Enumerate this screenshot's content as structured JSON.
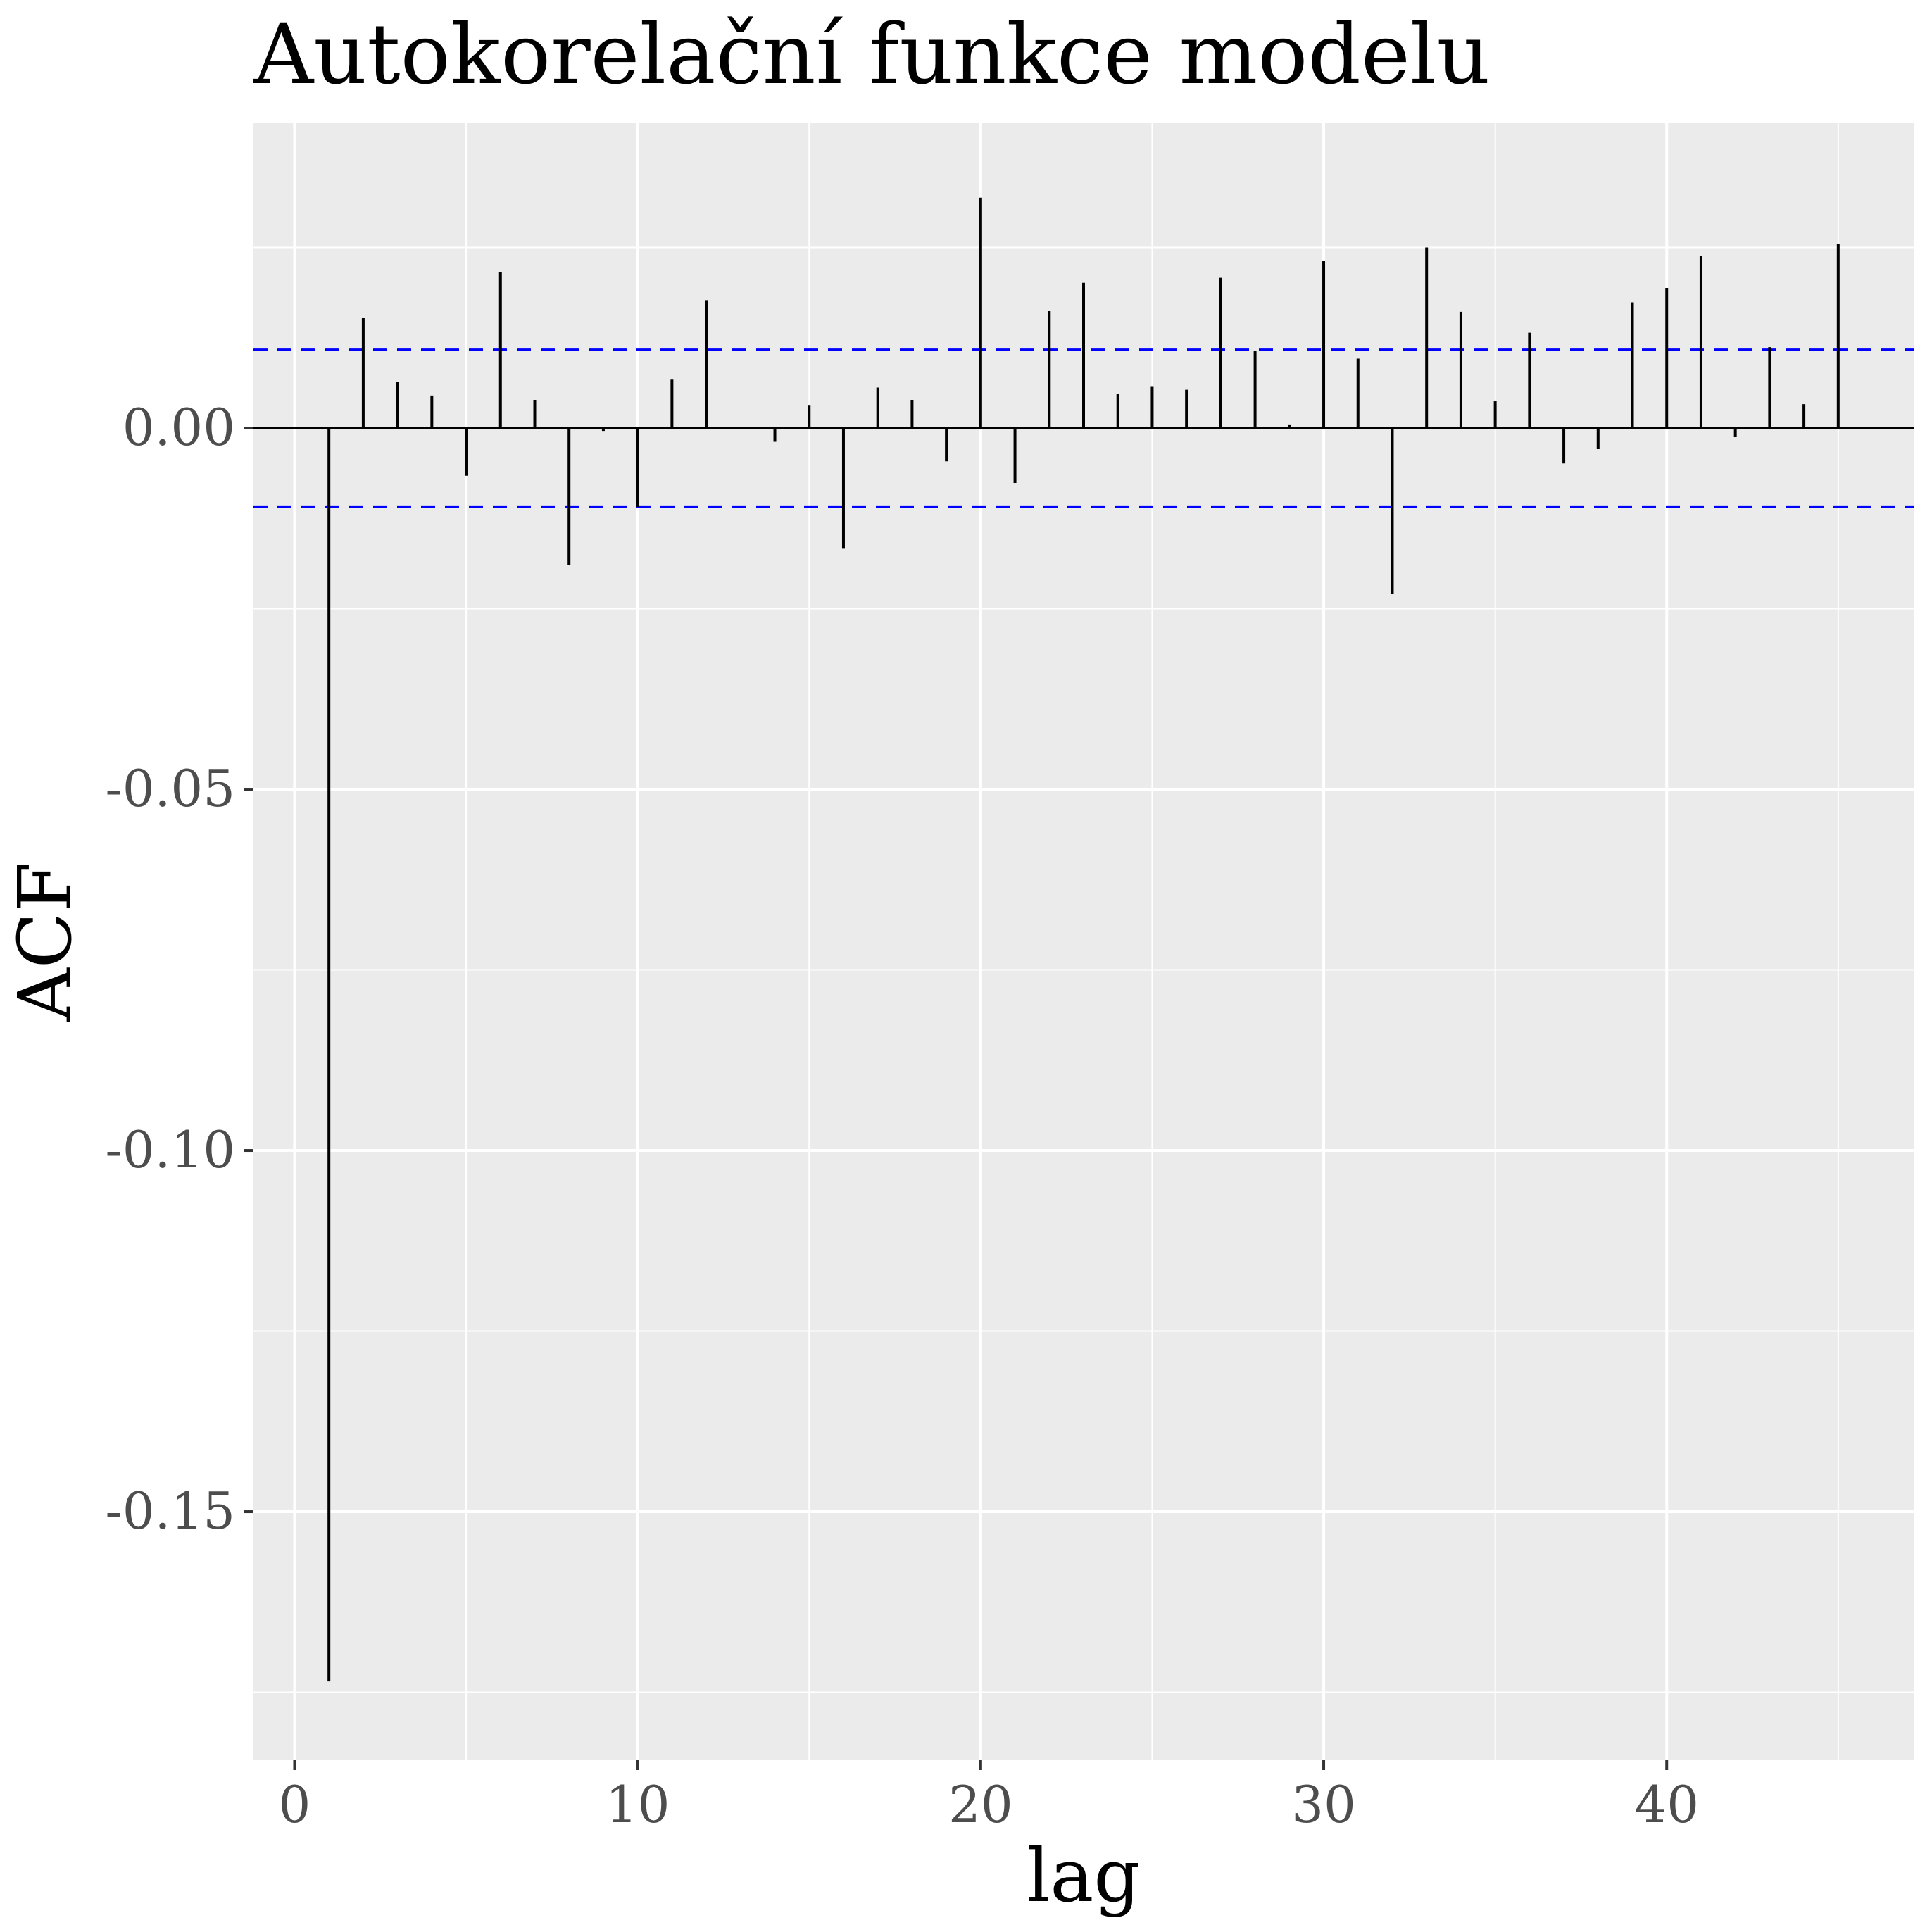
{
  "chart_data": {
    "type": "bar",
    "title": "Autokorelační funkce modelu",
    "xlabel": "lag",
    "ylabel": "ACF",
    "xlim": [
      -1.2,
      47.2
    ],
    "ylim": [
      -0.1844,
      0.0423
    ],
    "x_ticks": [
      0,
      10,
      20,
      30,
      40
    ],
    "x_tick_labels": [
      "0",
      "10",
      "20",
      "30",
      "40"
    ],
    "y_ticks": [
      0.0,
      -0.05,
      -0.1,
      -0.15
    ],
    "y_tick_labels": [
      "0.00",
      "-0.05",
      "-0.10",
      "-0.15"
    ],
    "y_minor_ticks": [
      0.025,
      -0.025,
      -0.075,
      -0.125,
      -0.175
    ],
    "x_minor_ticks": [
      5,
      15,
      25,
      35,
      45
    ],
    "grid": true,
    "confidence_band": 0.0109,
    "lags": [
      1,
      2,
      3,
      4,
      5,
      6,
      7,
      8,
      9,
      10,
      11,
      12,
      13,
      14,
      15,
      16,
      17,
      18,
      19,
      20,
      21,
      22,
      23,
      24,
      25,
      26,
      27,
      28,
      29,
      30,
      31,
      32,
      33,
      34,
      35,
      36,
      37,
      38,
      39,
      40,
      41,
      42,
      43,
      44,
      45
    ],
    "values": [
      -0.1735,
      0.0153,
      0.0064,
      0.0045,
      -0.0066,
      0.0216,
      0.0039,
      -0.019,
      -0.0004,
      -0.0109,
      0.0068,
      0.0177,
      0.0,
      -0.0019,
      0.0032,
      -0.0167,
      0.0056,
      0.0039,
      -0.0046,
      0.0319,
      -0.0076,
      0.0162,
      0.0201,
      0.0047,
      0.0058,
      0.0053,
      0.0208,
      0.0107,
      0.0005,
      0.0231,
      0.0096,
      -0.0229,
      0.025,
      0.0161,
      0.0037,
      0.0132,
      -0.0049,
      -0.0029,
      0.0174,
      0.0194,
      0.0238,
      -0.0012,
      0.0112,
      0.0033,
      0.0255
    ],
    "colors": {
      "panel": "#ebebeb",
      "grid": "#ffffff",
      "bars": "#000000",
      "band": "#0000ff",
      "tick_text": "#4d4d4d"
    }
  }
}
